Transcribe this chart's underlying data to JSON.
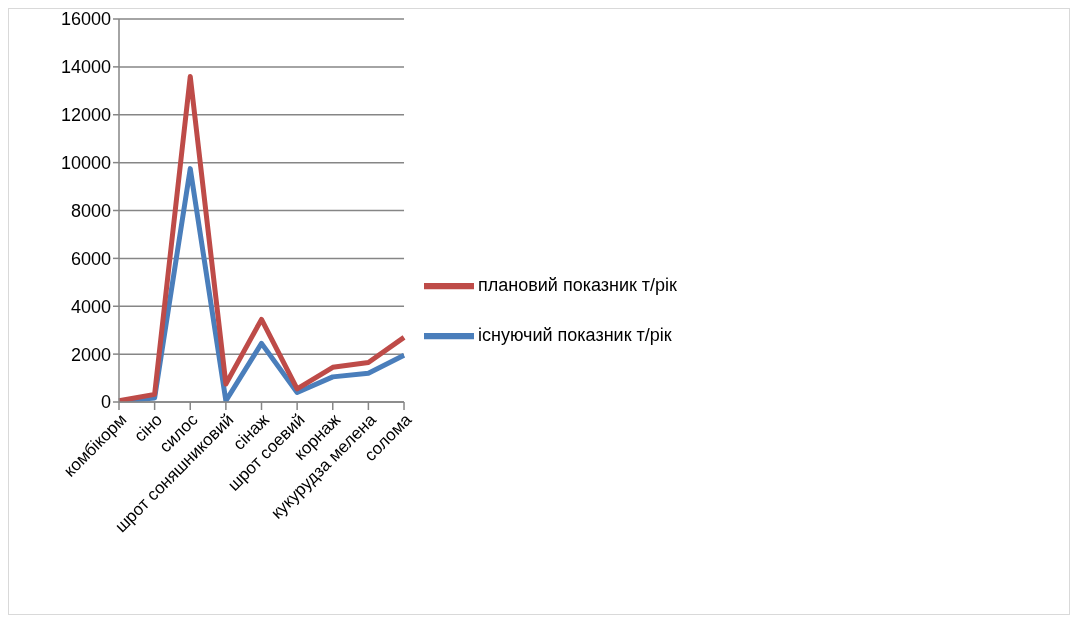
{
  "chart_data": {
    "type": "line",
    "categories": [
      "комбікорм",
      "сіно",
      "силос",
      "шрот соняшниковий",
      "сінаж",
      "шрот соевий",
      "корнаж",
      "кукурудза мелена",
      "солома"
    ],
    "series": [
      {
        "name": "існуючий показник т/рік",
        "color": "#4a7ebb",
        "values": [
          30,
          170,
          9750,
          50,
          2450,
          400,
          1050,
          1200,
          1950
        ]
      },
      {
        "name": "плановий показник т/рік",
        "color": "#be4b48",
        "values": [
          50,
          320,
          13600,
          750,
          3450,
          550,
          1450,
          1650,
          2700
        ]
      }
    ],
    "ylim": [
      0,
      16000
    ],
    "yticks": [
      0,
      2000,
      4000,
      6000,
      8000,
      10000,
      12000,
      14000,
      16000
    ],
    "grid": "y",
    "legend": "right",
    "marker": "none",
    "line_style": "solid"
  }
}
